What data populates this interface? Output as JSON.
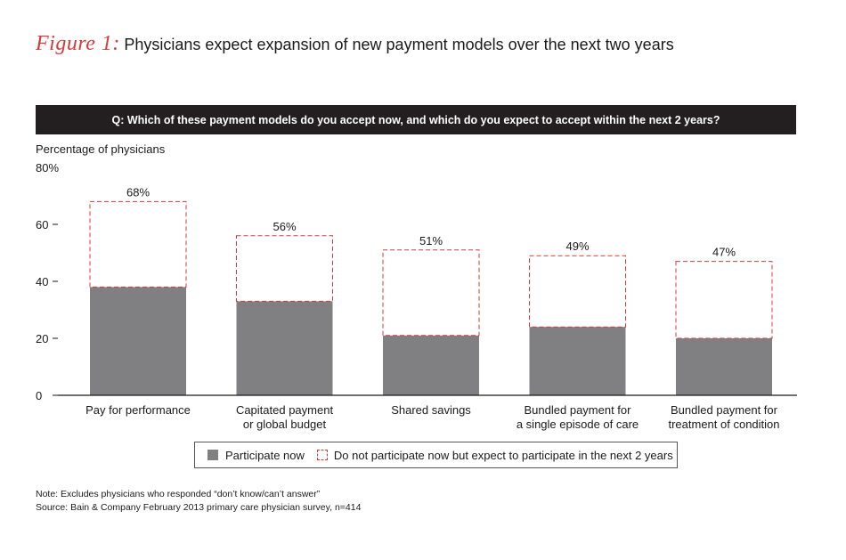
{
  "figure": {
    "label": "Figure 1:",
    "title": "Physicians expect expansion of new payment models over the next two years"
  },
  "question": "Q: Which of these payment models do you accept now, and which do you expect to accept within the next 2 years?",
  "chart_data": {
    "type": "bar",
    "ylabel": "Percentage of physicians",
    "ymax_label": "80%",
    "ylim": [
      0,
      80
    ],
    "y_ticks": [
      0,
      20,
      40,
      60
    ],
    "categories": [
      [
        "Pay for performance"
      ],
      [
        "Capitated payment",
        "or global budget"
      ],
      [
        "Shared savings"
      ],
      [
        "Bundled payment for",
        "a single episode of care"
      ],
      [
        "Bundled payment for",
        "treatment of condition"
      ]
    ],
    "series": [
      {
        "name": "Participate now",
        "color": "#808083",
        "values": [
          38,
          33,
          21,
          24,
          20
        ]
      },
      {
        "name": "Do not participate now but expect to participate in the next 2 years",
        "color": "#d63a3a",
        "values": [
          68,
          56,
          51,
          49,
          47
        ]
      }
    ],
    "total_labels": [
      "68%",
      "56%",
      "51%",
      "49%",
      "47%"
    ]
  },
  "legend": {
    "solid_label": "Participate now",
    "dashed_label": "Do not participate now but expect to participate in the next 2 years"
  },
  "notes": {
    "note": "Note: Excludes physicians who responded “don’t know/can’t answer”",
    "source": "Source: Bain & Company February 2013 primary care physician survey, n=414"
  }
}
